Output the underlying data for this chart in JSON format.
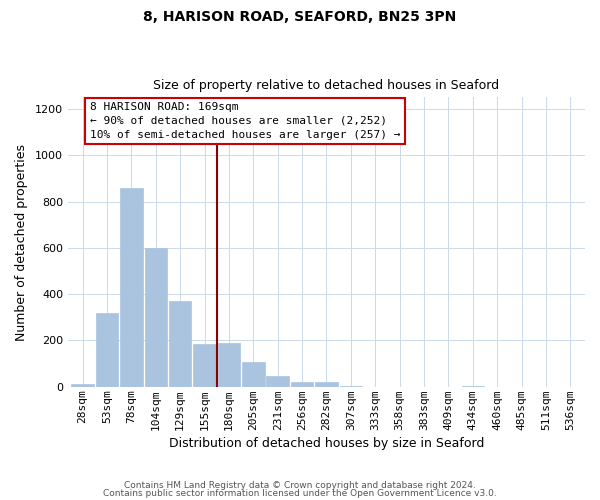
{
  "title": "8, HARISON ROAD, SEAFORD, BN25 3PN",
  "subtitle": "Size of property relative to detached houses in Seaford",
  "xlabel": "Distribution of detached houses by size in Seaford",
  "ylabel": "Number of detached properties",
  "bar_labels": [
    "28sqm",
    "53sqm",
    "78sqm",
    "104sqm",
    "129sqm",
    "155sqm",
    "180sqm",
    "205sqm",
    "231sqm",
    "256sqm",
    "282sqm",
    "307sqm",
    "333sqm",
    "358sqm",
    "383sqm",
    "409sqm",
    "434sqm",
    "460sqm",
    "485sqm",
    "511sqm",
    "536sqm"
  ],
  "bar_values": [
    12,
    320,
    860,
    600,
    370,
    185,
    190,
    105,
    45,
    20,
    20,
    5,
    0,
    0,
    0,
    0,
    5,
    0,
    0,
    0,
    0
  ],
  "bar_color": "#aac4e0",
  "bar_edge_color": "#aac4e0",
  "vline_color": "#8b0000",
  "annotation_text": "8 HARISON ROAD: 169sqm\n← 90% of detached houses are smaller (2,252)\n10% of semi-detached houses are larger (257) →",
  "annotation_box_color": "#ffffff",
  "annotation_box_edge_color": "#cc0000",
  "ylim": [
    0,
    1250
  ],
  "yticks": [
    0,
    200,
    400,
    600,
    800,
    1000,
    1200
  ],
  "footnote1": "Contains HM Land Registry data © Crown copyright and database right 2024.",
  "footnote2": "Contains public sector information licensed under the Open Government Licence v3.0.",
  "bg_color": "#ffffff",
  "grid_color": "#ccd9e8",
  "title_fontsize": 10,
  "subtitle_fontsize": 9,
  "xlabel_fontsize": 9,
  "ylabel_fontsize": 9,
  "tick_fontsize": 8,
  "annot_fontsize": 8
}
